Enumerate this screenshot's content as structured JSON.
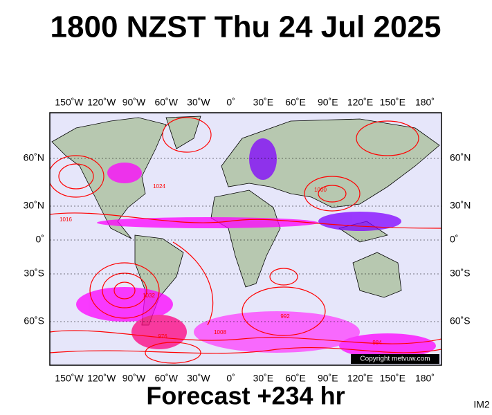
{
  "header": {
    "title": "1800 NZST Thu 24 Jul 2025"
  },
  "map": {
    "lon_labels": [
      "150˚W",
      "120˚W",
      "90˚W",
      "60˚W",
      "30˚W",
      "0˚",
      "30˚E",
      "60˚E",
      "90˚E",
      "120˚E",
      "150˚E",
      "180˚"
    ],
    "lat_labels": [
      "60˚N",
      "30˚N",
      "0˚",
      "30˚S",
      "60˚S"
    ],
    "isobar_labels": [
      "1016",
      "1024",
      "1000",
      "992",
      "976",
      "984",
      "1008",
      "1032"
    ],
    "copyright": "Copyright metvuw.com"
  },
  "footer": {
    "forecast": "Forecast +234 hr",
    "image_id": "IM2"
  }
}
